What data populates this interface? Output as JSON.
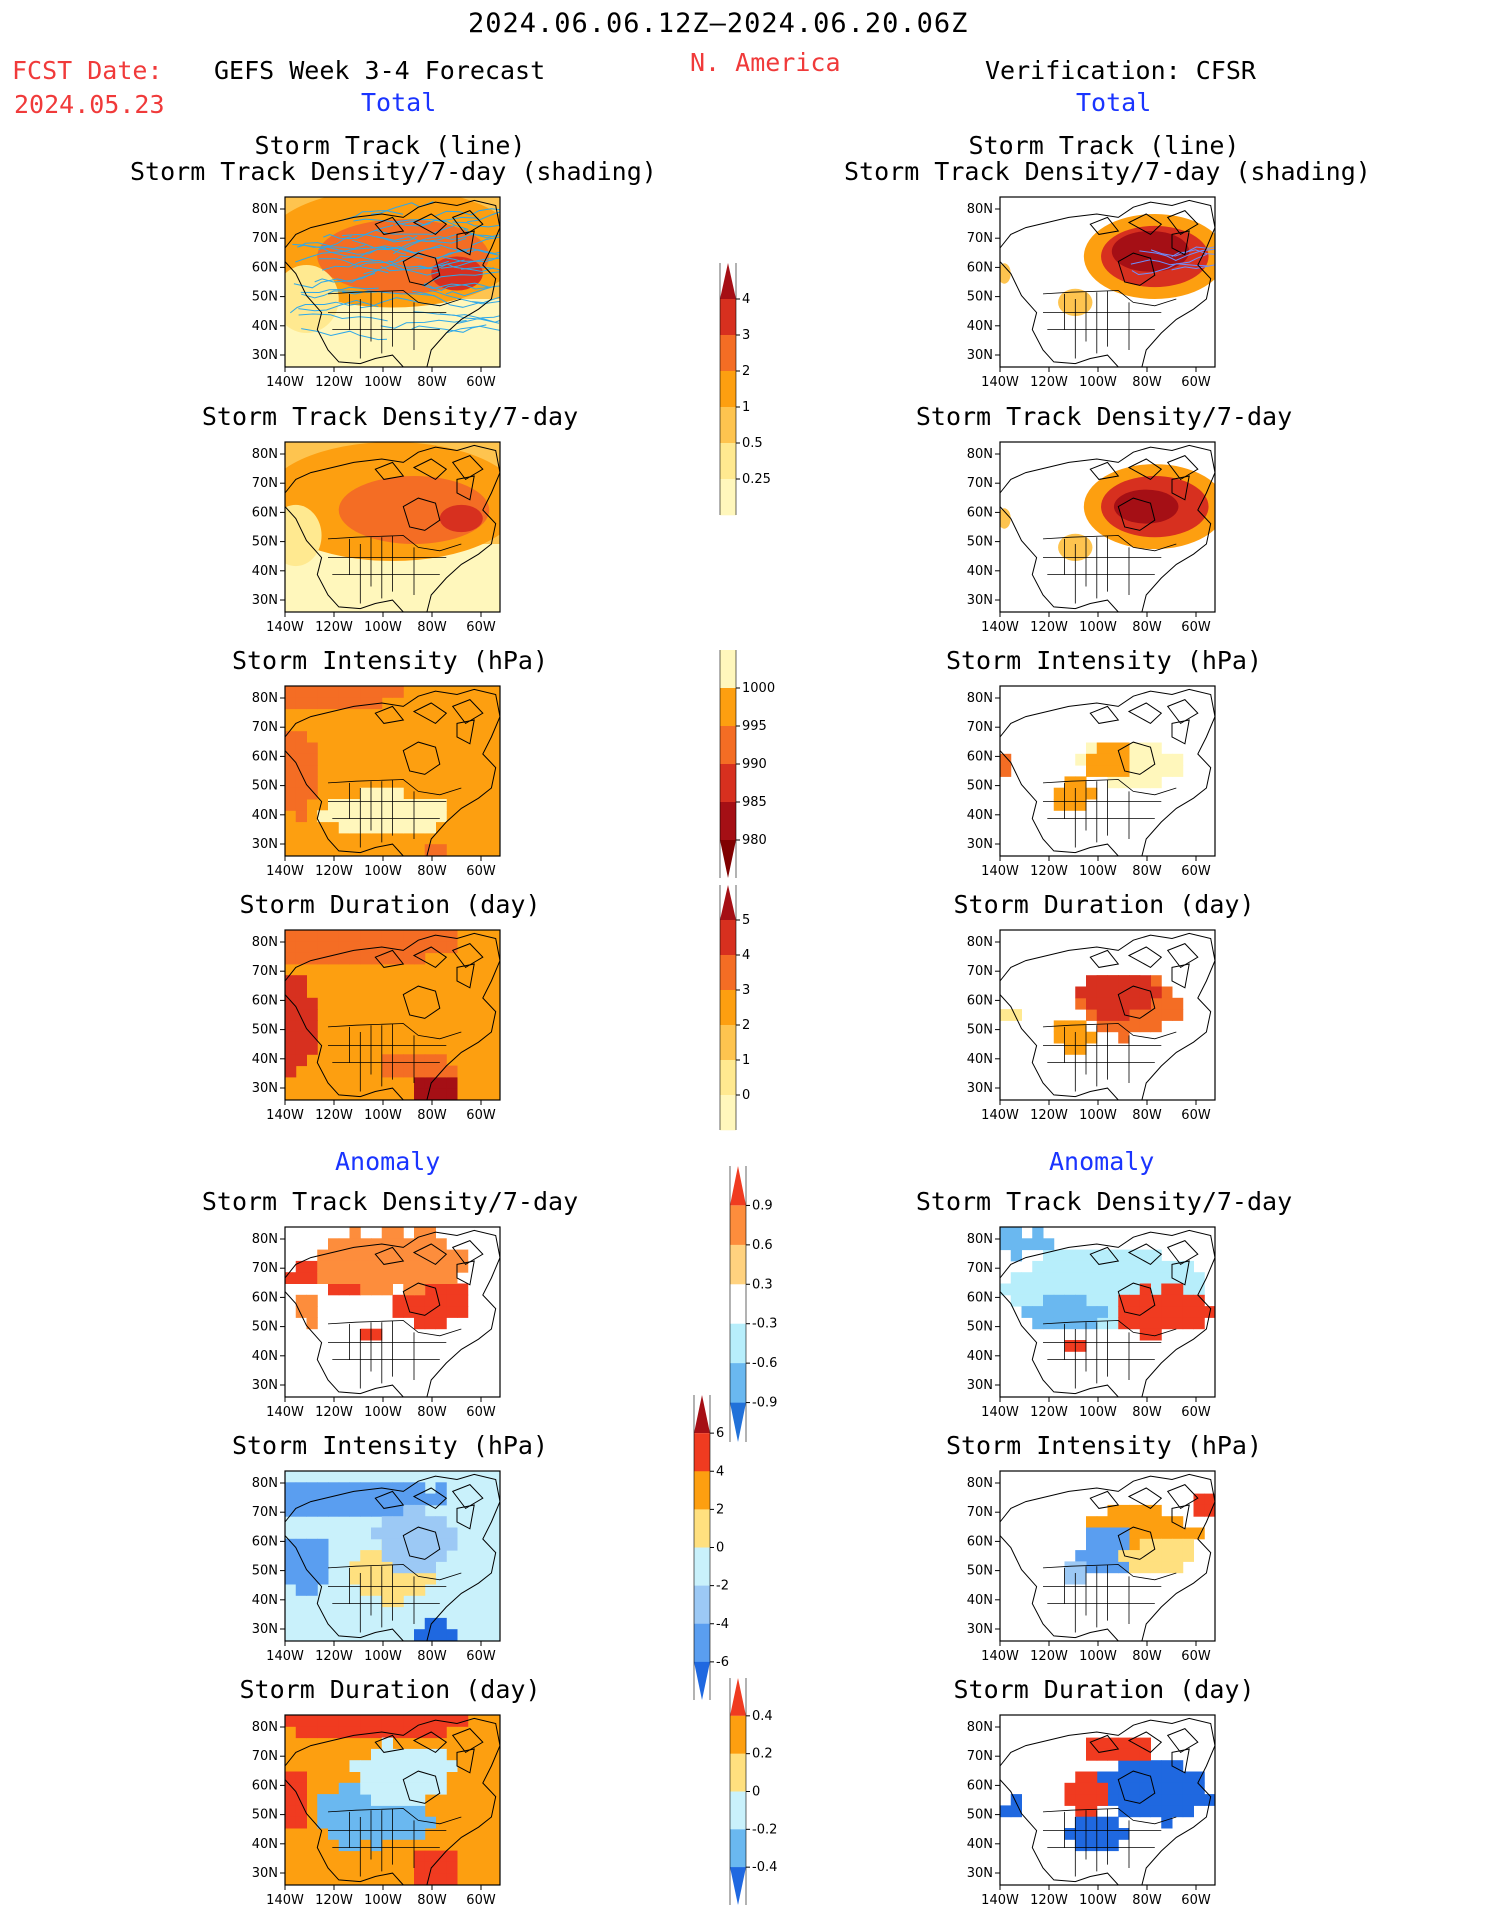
{
  "header": {
    "period": "2024.06.06.12Z–2024.06.20.06Z",
    "fcst_label": "FCST Date:",
    "fcst_date": "2024.05.23",
    "forecast_title": "GEFS Week 3-4 Forecast",
    "region": "N. America",
    "verification_title": "Verification: CFSR",
    "total_label_left": "Total",
    "total_label_right": "Total",
    "anomaly_label_left": "Anomaly",
    "anomaly_label_right": "Anomaly"
  },
  "axes": {
    "lat_labels": [
      "80N",
      "70N",
      "60N",
      "50N",
      "40N",
      "30N"
    ],
    "lon_labels": [
      "140W",
      "120W",
      "100W",
      "80W",
      "60W"
    ]
  },
  "panels": {
    "left": [
      {
        "title1": "Storm Track (line)",
        "title2": "Storm Track Density/7-day (shading)"
      },
      {
        "title1": "Storm Track Density/7-day"
      },
      {
        "title1": "Storm Intensity (hPa)"
      },
      {
        "title1": "Storm Duration (day)"
      },
      {
        "title1": "Storm Track Density/7-day"
      },
      {
        "title1": "Storm Intensity (hPa)"
      },
      {
        "title1": "Storm Duration (day)"
      }
    ],
    "right": [
      {
        "title1": "Storm Track (line)",
        "title2": "Storm Track Density/7-day (shading)"
      },
      {
        "title1": "Storm Track Density/7-day"
      },
      {
        "title1": "Storm Intensity (hPa)"
      },
      {
        "title1": "Storm Duration (day)"
      },
      {
        "title1": "Storm Track Density/7-day"
      },
      {
        "title1": "Storm Intensity (hPa)"
      },
      {
        "title1": "Storm Duration (day)"
      }
    ]
  },
  "colorbars": {
    "density": {
      "labels": [
        "4",
        "3",
        "2",
        "1",
        "0.5",
        "0.25"
      ],
      "colors": [
        "#a50f15",
        "#d7301f",
        "#f46d24",
        "#fd9f10",
        "#fec44f",
        "#ffe990",
        "#fff7bc"
      ]
    },
    "intensity": {
      "labels": [
        "1000",
        "995",
        "990",
        "985",
        "980"
      ],
      "colors": [
        "#fff7bc",
        "#fd9f10",
        "#f46d24",
        "#d7301f",
        "#a50f15",
        "#7f0000"
      ]
    },
    "duration": {
      "labels": [
        "5",
        "4",
        "3",
        "2",
        "1",
        "0"
      ],
      "colors": [
        "#a50f15",
        "#d7301f",
        "#f46d24",
        "#fd9f10",
        "#fec44f",
        "#ffe990",
        "#fff7bc"
      ]
    },
    "density_anom": {
      "labels": [
        "0.9",
        "0.6",
        "0.3",
        "-0.3",
        "-0.6",
        "-0.9"
      ],
      "colors": [
        "#f03b20",
        "#fd8d3c",
        "#ffd27f",
        "#ffffff",
        "#b7eefb",
        "#6ab8f0",
        "#2171d9"
      ]
    },
    "intensity_anom": {
      "labels": [
        "6",
        "4",
        "2",
        "0",
        "-2",
        "-4",
        "-6"
      ],
      "colors": [
        "#a50f15",
        "#f03b20",
        "#fd9f10",
        "#ffe07f",
        "#c9f1fb",
        "#9cc9f5",
        "#5a9ef0",
        "#1f68e0"
      ]
    },
    "duration_anom": {
      "labels": [
        "0.4",
        "0.2",
        "0",
        "-0.2",
        "-0.4"
      ],
      "colors": [
        "#f03b20",
        "#fd9f10",
        "#ffe07f",
        "#c9f1fb",
        "#6ab8f0",
        "#1f68e0"
      ]
    }
  }
}
